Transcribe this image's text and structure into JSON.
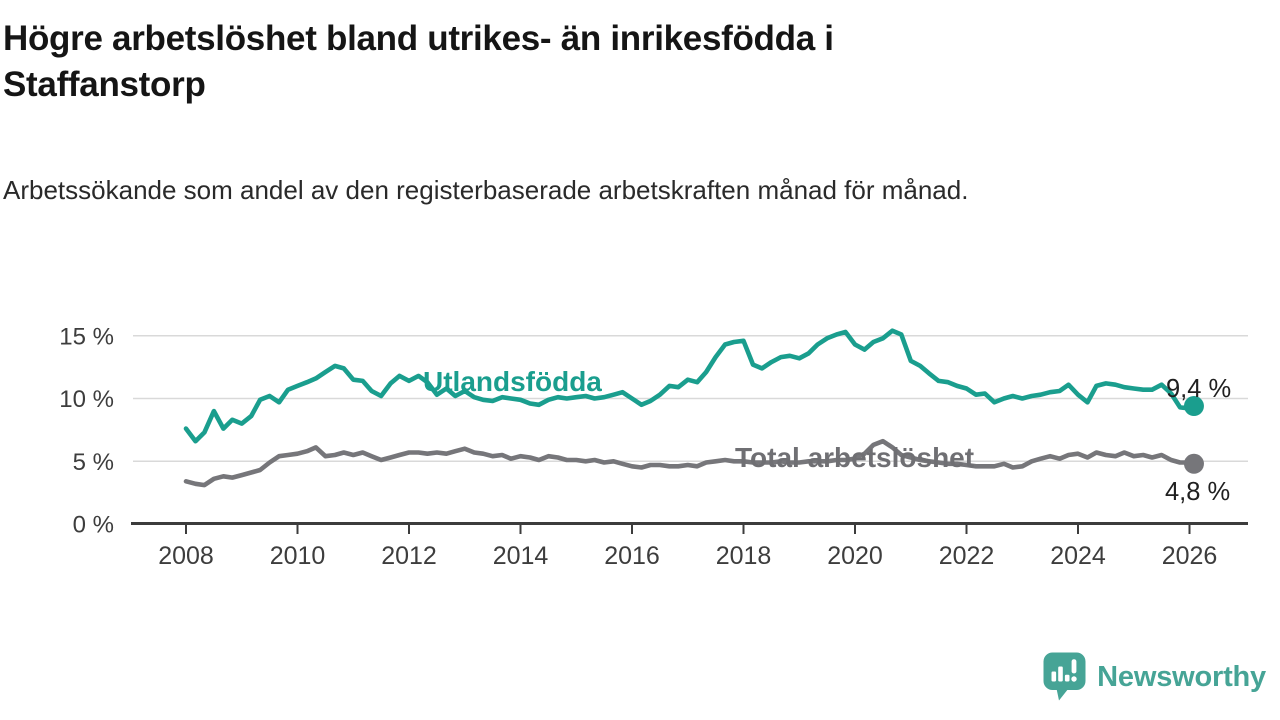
{
  "header": {
    "title": "Högre arbetslöshet bland utrikes- än inrikesfödda i Staffanstorp",
    "subtitle": "Arbetssökande som andel av den registerbaserade arbetskraften månad för månad."
  },
  "chart_data": {
    "type": "line",
    "grid": "horizontal",
    "colors": {
      "grid": "#d9d9d9",
      "axis": "#3c3c3c",
      "tick_text": "#3d3d3d",
      "annotation_text": "#202020"
    },
    "x_axis": {
      "ticks": [
        2008,
        2010,
        2012,
        2014,
        2016,
        2018,
        2020,
        2022,
        2024,
        2026
      ],
      "range": [
        2007.9,
        2027.1
      ]
    },
    "y_axis": {
      "unit": "%",
      "ticks": [
        0,
        5,
        10,
        15
      ],
      "tick_labels": [
        "0 %",
        "5 %",
        "10 %",
        "15 %"
      ],
      "range": [
        0,
        16.6
      ]
    },
    "x": [
      2008.0,
      2008.17,
      2008.33,
      2008.5,
      2008.67,
      2008.83,
      2009.0,
      2009.17,
      2009.33,
      2009.5,
      2009.67,
      2009.83,
      2010.0,
      2010.17,
      2010.33,
      2010.5,
      2010.67,
      2010.83,
      2011.0,
      2011.17,
      2011.33,
      2011.5,
      2011.67,
      2011.83,
      2012.0,
      2012.17,
      2012.33,
      2012.5,
      2012.67,
      2012.83,
      2013.0,
      2013.17,
      2013.33,
      2013.5,
      2013.67,
      2013.83,
      2014.0,
      2014.17,
      2014.33,
      2014.5,
      2014.67,
      2014.83,
      2015.0,
      2015.17,
      2015.33,
      2015.5,
      2015.67,
      2015.83,
      2016.0,
      2016.17,
      2016.33,
      2016.5,
      2016.67,
      2016.83,
      2017.0,
      2017.17,
      2017.33,
      2017.5,
      2017.67,
      2017.83,
      2018.0,
      2018.17,
      2018.33,
      2018.5,
      2018.67,
      2018.83,
      2019.0,
      2019.17,
      2019.33,
      2019.5,
      2019.67,
      2019.83,
      2020.0,
      2020.17,
      2020.33,
      2020.5,
      2020.67,
      2020.83,
      2021.0,
      2021.17,
      2021.33,
      2021.5,
      2021.67,
      2021.83,
      2022.0,
      2022.17,
      2022.33,
      2022.5,
      2022.67,
      2022.83,
      2023.0,
      2023.17,
      2023.33,
      2023.5,
      2023.67,
      2023.83,
      2024.0,
      2024.17,
      2024.33,
      2024.5,
      2024.67,
      2024.83,
      2025.0,
      2025.17,
      2025.33,
      2025.5,
      2025.67,
      2025.83,
      2026.0,
      2026.08
    ],
    "series": [
      {
        "name": "Utlandsfödda",
        "color": "#1a9e8e",
        "end_label": "9,4 %",
        "end_value": 9.4,
        "values": [
          7.6,
          6.6,
          7.3,
          9.0,
          7.6,
          8.3,
          8.0,
          8.6,
          9.9,
          10.2,
          9.7,
          10.7,
          11.0,
          11.3,
          11.6,
          12.1,
          12.6,
          12.4,
          11.5,
          11.4,
          10.6,
          10.2,
          11.2,
          11.8,
          11.4,
          11.8,
          11.3,
          10.3,
          10.8,
          10.2,
          10.6,
          10.1,
          9.9,
          9.8,
          10.1,
          10.0,
          9.9,
          9.6,
          9.5,
          9.9,
          10.1,
          10.0,
          10.1,
          10.2,
          10.0,
          10.1,
          10.3,
          10.5,
          10.0,
          9.5,
          9.8,
          10.3,
          11.0,
          10.9,
          11.5,
          11.3,
          12.1,
          13.3,
          14.3,
          14.5,
          14.6,
          12.7,
          12.4,
          12.9,
          13.3,
          13.4,
          13.2,
          13.6,
          14.3,
          14.8,
          15.1,
          15.3,
          14.3,
          13.9,
          14.5,
          14.8,
          15.4,
          15.1,
          13.0,
          12.6,
          12.0,
          11.4,
          11.3,
          11.0,
          10.8,
          10.3,
          10.4,
          9.7,
          10.0,
          10.2,
          10.0,
          10.2,
          10.3,
          10.5,
          10.6,
          11.1,
          10.3,
          9.7,
          11.0,
          11.2,
          11.1,
          10.9,
          10.8,
          10.7,
          10.7,
          11.1,
          10.4,
          9.3,
          9.2,
          9.4
        ]
      },
      {
        "name": "Total arbetslöshet",
        "color": "#76767a",
        "end_label": "4,8 %",
        "end_value": 4.8,
        "values": [
          3.4,
          3.2,
          3.1,
          3.6,
          3.8,
          3.7,
          3.9,
          4.1,
          4.3,
          4.9,
          5.4,
          5.5,
          5.6,
          5.8,
          6.1,
          5.4,
          5.5,
          5.7,
          5.5,
          5.7,
          5.4,
          5.1,
          5.3,
          5.5,
          5.7,
          5.7,
          5.6,
          5.7,
          5.6,
          5.8,
          6.0,
          5.7,
          5.6,
          5.4,
          5.5,
          5.2,
          5.4,
          5.3,
          5.1,
          5.4,
          5.3,
          5.1,
          5.1,
          5.0,
          5.1,
          4.9,
          5.0,
          4.8,
          4.6,
          4.5,
          4.7,
          4.7,
          4.6,
          4.6,
          4.7,
          4.6,
          4.9,
          5.0,
          5.1,
          5.0,
          5.0,
          4.9,
          4.9,
          4.9,
          5.0,
          4.9,
          4.9,
          5.0,
          5.0,
          5.0,
          5.1,
          5.1,
          5.2,
          5.6,
          6.3,
          6.6,
          6.1,
          5.5,
          5.3,
          5.1,
          5.0,
          4.9,
          4.8,
          4.8,
          4.7,
          4.6,
          4.6,
          4.6,
          4.8,
          4.5,
          4.6,
          5.0,
          5.2,
          5.4,
          5.2,
          5.5,
          5.6,
          5.3,
          5.7,
          5.5,
          5.4,
          5.7,
          5.4,
          5.5,
          5.3,
          5.5,
          5.1,
          4.9,
          4.9,
          4.8
        ]
      }
    ]
  },
  "footer": {
    "brand": "Newsworthy",
    "brand_color": "#46a496",
    "logo_icon": "speech-bubble-bar-chart-icon"
  }
}
